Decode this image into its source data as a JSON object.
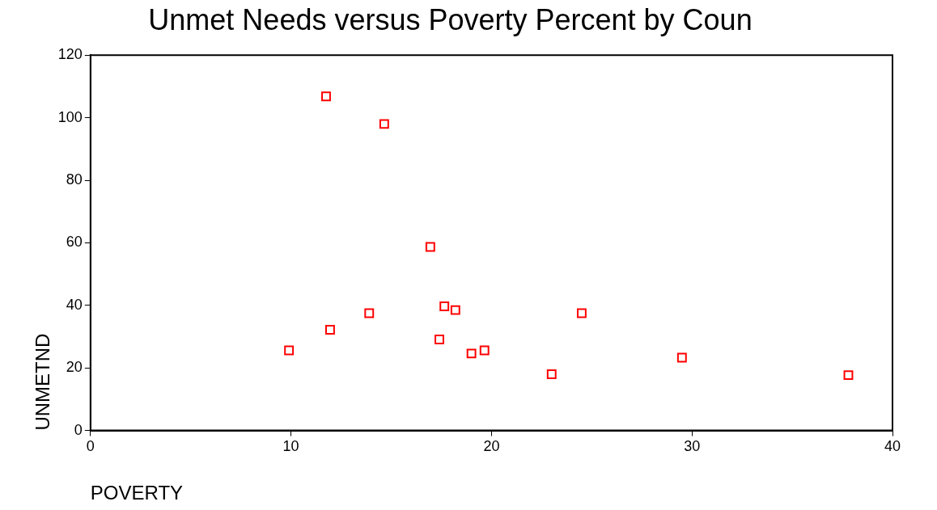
{
  "chart_data": {
    "type": "scatter",
    "title": "Unmet Needs versus Poverty Percent by Coun",
    "xlabel": "POVERTY",
    "ylabel": "UNMETND",
    "x": [
      11.75,
      14.65,
      16.95,
      13.9,
      17.65,
      18.2,
      24.5,
      11.95,
      17.4,
      9.9,
      19.0,
      19.65,
      23.0,
      29.5,
      37.8
    ],
    "series": [
      {
        "color": "#ff0000",
        "values": [
          106.8,
          98.0,
          58.7,
          37.5,
          39.7,
          38.5,
          37.5,
          32.2,
          29.1,
          25.6,
          24.6,
          25.6,
          18.0,
          23.3,
          17.7
        ]
      }
    ],
    "xlim": [
      0,
      40
    ],
    "xticks": [
      0,
      10,
      20,
      30,
      40
    ],
    "ylim": [
      0,
      120
    ],
    "yticks": [
      0,
      20,
      40,
      60,
      80,
      100,
      120
    ],
    "marker": "square",
    "grid": false,
    "legend": false
  }
}
